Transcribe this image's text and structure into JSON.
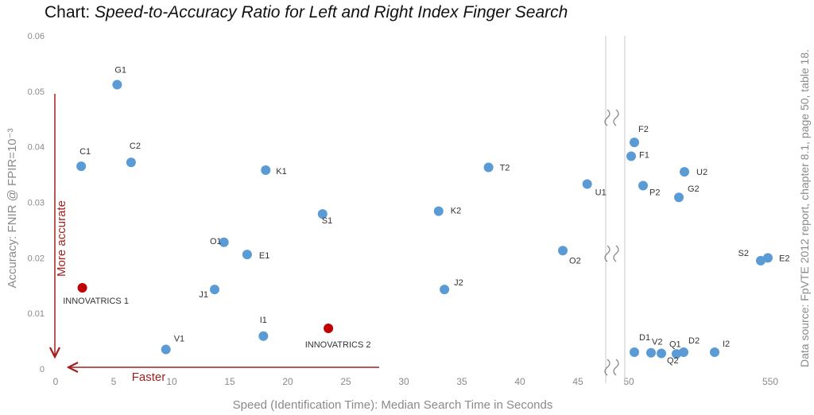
{
  "title_prefix": "Chart:",
  "title_main": "Speed-to-Accuracy Ratio for Left and Right Index Finger Search",
  "source_note": "Data source: FpVTE 2012 report, chapter 8.1, page 50, table 18.",
  "colors": {
    "normal": "#5b9bd5",
    "innovatrics": "#c00000",
    "axis_text": "#8a8a8a",
    "arrow": "#a32020",
    "divider": "#c8c8c8"
  },
  "chart_data": {
    "type": "scatter",
    "xlabel": "Speed (Identification Time): Median Search Time in Seconds",
    "ylabel": "Accuracy: FNIR @ FPIR=10⁻³",
    "x_ticks": [
      0,
      5,
      10,
      15,
      20,
      25,
      30,
      35,
      40,
      45,
      50
    ],
    "x_ticks_right": [
      50,
      550
    ],
    "xlim": [
      0,
      48
    ],
    "ylim": [
      0,
      0.06
    ],
    "y_ticks": [
      "0",
      "0.01",
      "0.02",
      "0.03",
      "0.04",
      "0.05",
      "0.06"
    ],
    "y_values": [
      0,
      0.01,
      0.02,
      0.03,
      0.04,
      0.05,
      0.06
    ],
    "grid": false,
    "axis_break": true,
    "arrows": {
      "vertical_label": "More  accurate",
      "horizontal_label": "Faster"
    },
    "points": [
      {
        "label": "G1",
        "x": 5.3,
        "y": 0.0512
      },
      {
        "label": "C1",
        "x": 2.2,
        "y": 0.0365
      },
      {
        "label": "C2",
        "x": 6.5,
        "y": 0.0372
      },
      {
        "label": "K1",
        "x": 18.1,
        "y": 0.0358
      },
      {
        "label": "S1",
        "x": 23.0,
        "y": 0.0279
      },
      {
        "label": "O1",
        "x": 14.5,
        "y": 0.0228
      },
      {
        "label": "E1",
        "x": 16.5,
        "y": 0.0206
      },
      {
        "label": "J1",
        "x": 13.7,
        "y": 0.0143
      },
      {
        "label": "V1",
        "x": 9.5,
        "y": 0.0035
      },
      {
        "label": "I1",
        "x": 17.9,
        "y": 0.0059
      },
      {
        "label": "T2",
        "x": 37.3,
        "y": 0.0363
      },
      {
        "label": "K2",
        "x": 33.0,
        "y": 0.0284
      },
      {
        "label": "J2",
        "x": 33.5,
        "y": 0.0143
      },
      {
        "label": "U1",
        "x": 45.8,
        "y": 0.0333
      },
      {
        "label": "O2",
        "x": 43.7,
        "y": 0.0213
      },
      {
        "label": "INNOVATRICS 1",
        "x": 2.3,
        "y": 0.0146,
        "highlight": true
      },
      {
        "label": "INNOVATRICS 2",
        "x": 23.5,
        "y": 0.0073,
        "highlight": true
      }
    ],
    "points_right": [
      {
        "label": "F2",
        "y": 0.0408
      },
      {
        "label": "F1",
        "y": 0.0383
      },
      {
        "label": "U2",
        "y": 0.0355
      },
      {
        "label": "P2",
        "y": 0.033
      },
      {
        "label": "G2",
        "y": 0.0309
      },
      {
        "label": "S2",
        "y": 0.0195
      },
      {
        "label": "E2",
        "y": 0.02
      },
      {
        "label": "D1",
        "y": 0.003
      },
      {
        "label": "V2",
        "y": 0.0029
      },
      {
        "label": "Q1",
        "y": 0.0028
      },
      {
        "label": "Q2",
        "y": 0.0027
      },
      {
        "label": "D2",
        "y": 0.003
      },
      {
        "label": "I2",
        "y": 0.003
      }
    ]
  }
}
